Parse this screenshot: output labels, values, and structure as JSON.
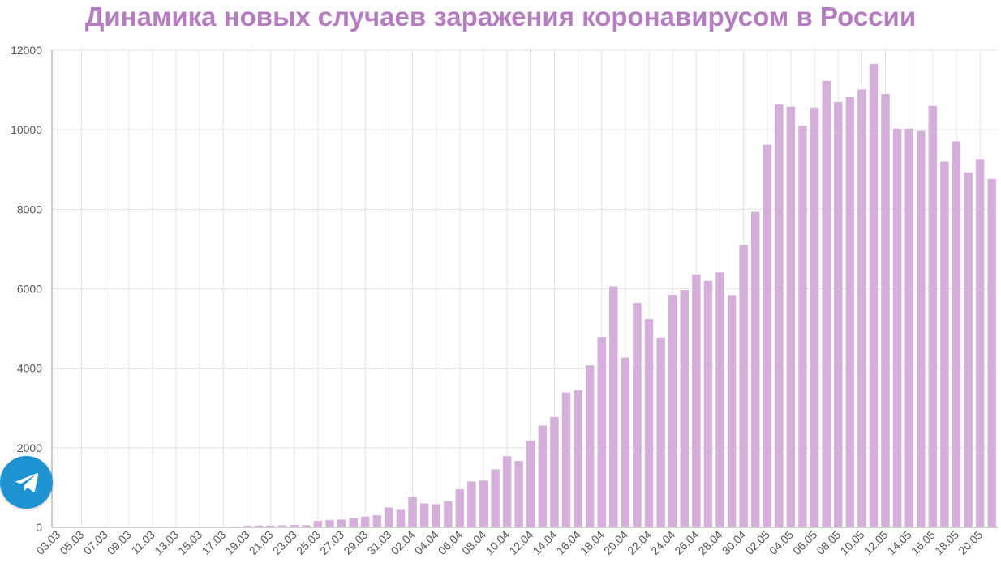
{
  "title": "Динамика новых случаев заражения коронавирусом в России",
  "telegram": {
    "icon": "telegram-icon"
  },
  "colors": {
    "title": "#b57cbf",
    "bar": "#d4afd9",
    "grid": "#e3e3e3",
    "axis": "#9b9b9b",
    "text": "#555555",
    "telegram": "#1f93d1"
  },
  "chart_data": {
    "type": "bar",
    "title": "Динамика новых случаев заражения коронавирусом в России",
    "xlabel": "",
    "ylabel": "",
    "ylim": [
      0,
      12000
    ],
    "yticks": [
      0,
      2000,
      4000,
      6000,
      8000,
      10000,
      12000
    ],
    "grid": true,
    "x_tick_labels": [
      "03.03",
      "05.03",
      "07.03",
      "09.03",
      "11.03",
      "13.03",
      "15.03",
      "17.03",
      "19.03",
      "21.03",
      "23.03",
      "25.03",
      "27.03",
      "29.03",
      "31.03",
      "02.04",
      "04.04",
      "06.04",
      "08.04",
      "10.04",
      "12.04",
      "14.04",
      "16.04",
      "18.04",
      "20.04",
      "22.04",
      "24.04",
      "26.04",
      "28.04",
      "30.04",
      "02.05",
      "04.05",
      "06.05",
      "08.05",
      "10.05",
      "12.05",
      "14.05",
      "16.05",
      "18.05",
      "20.05"
    ],
    "categories": [
      "03.03",
      "04.03",
      "05.03",
      "06.03",
      "07.03",
      "08.03",
      "09.03",
      "10.03",
      "11.03",
      "12.03",
      "13.03",
      "14.03",
      "15.03",
      "16.03",
      "17.03",
      "18.03",
      "19.03",
      "20.03",
      "21.03",
      "22.03",
      "23.03",
      "24.03",
      "25.03",
      "26.03",
      "27.03",
      "28.03",
      "29.03",
      "30.03",
      "31.03",
      "01.04",
      "02.04",
      "03.04",
      "04.04",
      "05.04",
      "06.04",
      "07.04",
      "08.04",
      "09.04",
      "10.04",
      "11.04",
      "12.04",
      "13.04",
      "14.04",
      "15.04",
      "16.04",
      "17.04",
      "18.04",
      "19.04",
      "20.04",
      "21.04",
      "22.04",
      "23.04",
      "24.04",
      "25.04",
      "26.04",
      "27.04",
      "28.04",
      "29.04",
      "30.04",
      "01.05",
      "02.05",
      "03.05",
      "04.05",
      "05.05",
      "06.05",
      "07.05",
      "08.05",
      "09.05",
      "10.05",
      "11.05",
      "12.05",
      "13.05",
      "14.05",
      "15.05",
      "16.05",
      "17.05",
      "18.05",
      "19.05",
      "20.05",
      "21.05"
    ],
    "values": [
      0,
      0,
      0,
      0,
      0,
      0,
      0,
      0,
      0,
      0,
      0,
      0,
      0,
      0,
      7,
      21,
      38,
      47,
      44,
      52,
      57,
      54,
      163,
      182,
      196,
      228,
      270,
      302,
      500,
      440,
      771,
      601,
      582,
      658,
      954,
      1154,
      1175,
      1459,
      1786,
      1667,
      2186,
      2558,
      2774,
      3388,
      3448,
      4070,
      4785,
      6060,
      4268,
      5642,
      5236,
      4774,
      5849,
      5966,
      6361,
      6198,
      6411,
      5841,
      7099,
      7933,
      9623,
      10633,
      10581,
      10102,
      10559,
      11231,
      10699,
      10817,
      11012,
      11656,
      10899,
      10028,
      10028,
      9974,
      10598,
      9200,
      9709,
      8926,
      9263,
      8764
    ]
  }
}
